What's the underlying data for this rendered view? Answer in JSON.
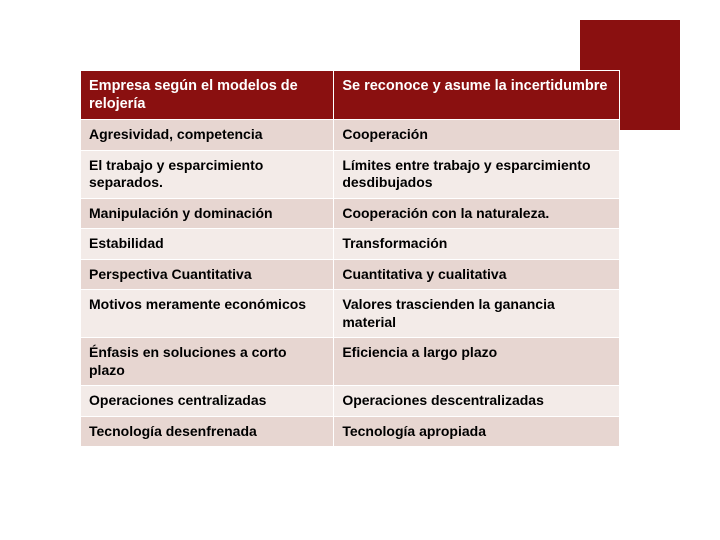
{
  "accent_color": "#8a1010",
  "row_colors": {
    "a": "#e7d6d1",
    "b": "#f3ebe8"
  },
  "header": {
    "left": "Empresa según el modelos de relojería",
    "right": "Se reconoce y asume la incertidumbre"
  },
  "rows": [
    {
      "left": "Agresividad, competencia",
      "right": "Cooperación"
    },
    {
      "left": "El trabajo y esparcimiento separados.",
      "right": "Límites entre trabajo y esparcimiento desdibujados"
    },
    {
      "left": "Manipulación y dominación",
      "right": "Cooperación con la naturaleza."
    },
    {
      "left": "Estabilidad",
      "right": "Transformación"
    },
    {
      "left": "Perspectiva  Cuantitativa",
      "right": "Cuantitativa y cualitativa"
    },
    {
      "left": "Motivos meramente económicos",
      "right": "Valores trascienden la ganancia material"
    },
    {
      "left": "Énfasis  en soluciones a corto plazo",
      "right": "Eficiencia a largo plazo"
    },
    {
      "left": "Operaciones centralizadas",
      "right": "Operaciones descentralizadas"
    },
    {
      "left": "Tecnología desenfrenada",
      "right": "Tecnología apropiada"
    }
  ]
}
